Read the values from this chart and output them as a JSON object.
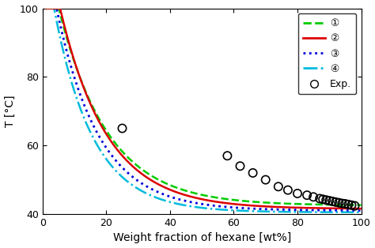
{
  "xlabel": "Weight fraction of hexane [wt%]",
  "ylabel": "T [°C]",
  "xlim": [
    0,
    100
  ],
  "ylim": [
    40,
    100
  ],
  "yticks": [
    40,
    60,
    80,
    100
  ],
  "xticks": [
    0,
    20,
    40,
    60,
    80,
    100
  ],
  "line1_color": "#00cc00",
  "line2_color": "#dd0000",
  "line3_color": "#0000dd",
  "line4_color": "#00bbdd",
  "exp_color": "#000000",
  "exp_x": [
    25,
    58,
    62,
    66,
    70,
    74,
    77,
    80,
    83,
    85,
    87,
    88,
    89,
    90,
    91,
    92,
    93,
    94,
    95,
    96,
    97,
    98
  ],
  "exp_y": [
    65,
    57,
    54,
    52,
    50,
    48,
    47,
    46,
    45.5,
    45,
    44.5,
    44.3,
    44.1,
    43.9,
    43.7,
    43.5,
    43.3,
    43.1,
    43.0,
    42.8,
    42.6,
    42.4
  ],
  "curve_params": {
    "line1": {
      "T_inf": 42.5,
      "A": 80,
      "k": 0.065
    },
    "line2": {
      "T_inf": 41.5,
      "A": 85,
      "k": 0.068
    },
    "line3": {
      "T_inf": 41.0,
      "A": 82,
      "k": 0.075
    },
    "line4": {
      "T_inf": 40.5,
      "A": 80,
      "k": 0.082
    }
  }
}
